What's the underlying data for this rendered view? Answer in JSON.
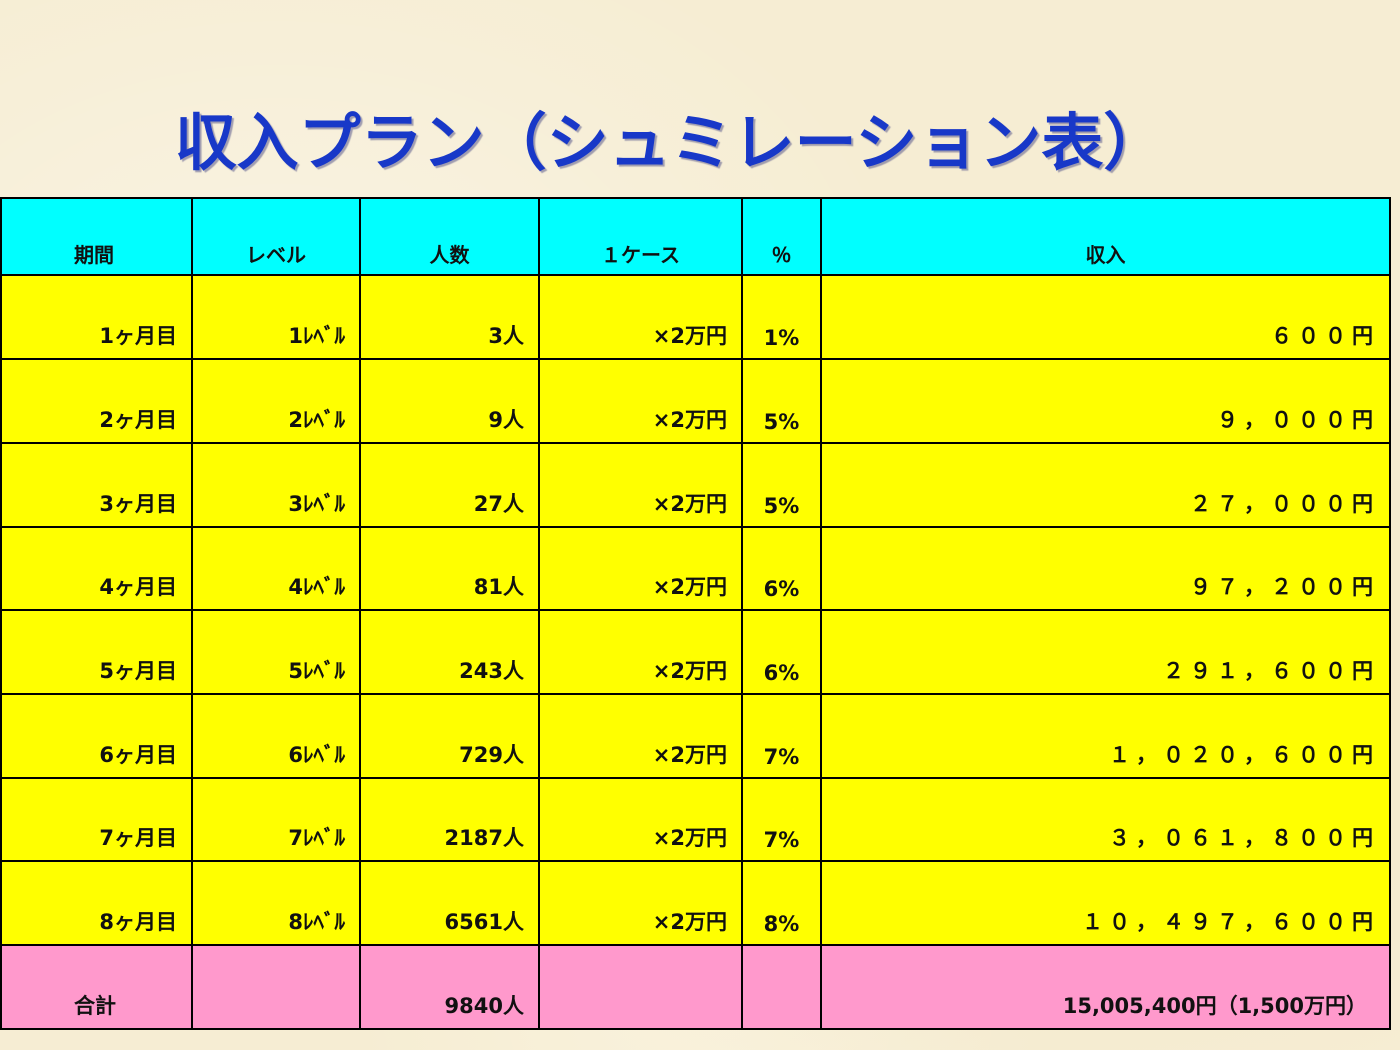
{
  "title": "収入プラン（シュミレーション表）",
  "table": {
    "headers": {
      "period": "期間",
      "level": "レベル",
      "people": "人数",
      "per_case": "１ケース",
      "percent": "％",
      "income": "収入"
    },
    "rows": [
      {
        "period": "1ヶ月目",
        "level": "1ﾚﾍﾞﾙ",
        "people": "3人",
        "per_case": "×2万円",
        "percent": "1%",
        "income": "６００円"
      },
      {
        "period": "2ヶ月目",
        "level": "2ﾚﾍﾞﾙ",
        "people": "9人",
        "per_case": "×2万円",
        "percent": "5%",
        "income": "９，０００円"
      },
      {
        "period": "3ヶ月目",
        "level": "3ﾚﾍﾞﾙ",
        "people": "27人",
        "per_case": "×2万円",
        "percent": "5%",
        "income": "２７，０００円"
      },
      {
        "period": "4ヶ月目",
        "level": "4ﾚﾍﾞﾙ",
        "people": "81人",
        "per_case": "×2万円",
        "percent": "6%",
        "income": "９７，２００円"
      },
      {
        "period": "5ヶ月目",
        "level": "5ﾚﾍﾞﾙ",
        "people": "243人",
        "per_case": "×2万円",
        "percent": "6%",
        "income": "２９１，６００円"
      },
      {
        "period": "6ヶ月目",
        "level": "6ﾚﾍﾞﾙ",
        "people": "729人",
        "per_case": "×2万円",
        "percent": "7%",
        "income": "１，０２０，６００円"
      },
      {
        "period": "7ヶ月目",
        "level": "7ﾚﾍﾞﾙ",
        "people": "2187人",
        "per_case": "×2万円",
        "percent": "7%",
        "income": "３，０６１，８００円"
      },
      {
        "period": "8ヶ月目",
        "level": "8ﾚﾍﾞﾙ",
        "people": "6561人",
        "per_case": "×2万円",
        "percent": "8%",
        "income": "１０，４９７，６００円"
      }
    ],
    "total": {
      "label": "合計",
      "people": "9840人",
      "income": "15,005,400円（1,500万円）"
    }
  },
  "colors": {
    "title": "#1838c8",
    "header_bg": "#00ffff",
    "row_bg": "#ffff00",
    "total_bg": "#ff99cc",
    "page_bg": "#f6edd3"
  }
}
